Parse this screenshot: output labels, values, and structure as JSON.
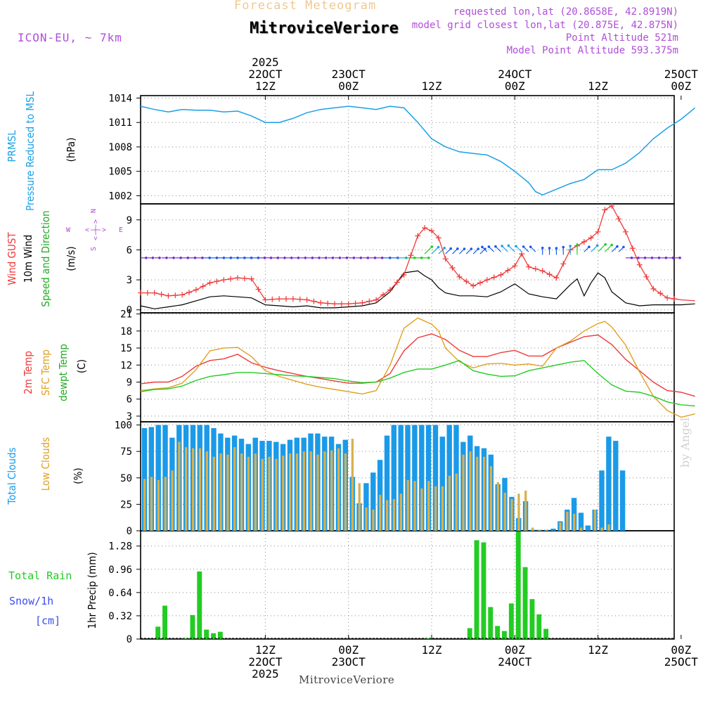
{
  "header": {
    "forecast_title": "Forecast Meteogram",
    "station": "MitroviceVeriore",
    "model": "ICON-EU, ~ 7km",
    "requested": "requested lon,lat (20.8658E, 42.8919N)",
    "closest": "model grid closest lon,lat (20.875E, 42.875N)",
    "altitude": "Point Altitude 521m",
    "model_altitude": "Model Point Altitude 593.375m",
    "watermark": "by Angel",
    "footer_name": "MitroviceVeriore"
  },
  "colors": {
    "pressure": "#1aa0e6",
    "gust": "#ee3a3a",
    "wind": "#000000",
    "temp": "#ee3a3a",
    "sfc": "#e0a020",
    "dewpt": "#22cc22",
    "total_clouds": "#1a9ae8",
    "low_clouds": "#d8b050",
    "precip": "#22cc22",
    "grid": "#888888",
    "label_purple": "#b04ed8",
    "snow_blue": "#3c4cf0"
  },
  "chart_data": {
    "type": "line",
    "time_axis": {
      "unit": "hours since 21OCT 18Z",
      "range": [
        0,
        77
      ],
      "top_ticks": [
        {
          "hour": 18,
          "lines": [
            "2025",
            "22OCT",
            "12Z"
          ]
        },
        {
          "hour": 30,
          "lines": [
            "23OCT",
            "00Z"
          ]
        },
        {
          "hour": 42,
          "lines": [
            "12Z"
          ]
        },
        {
          "hour": 54,
          "lines": [
            "24OCT",
            "00Z"
          ]
        },
        {
          "hour": 66,
          "lines": [
            "12Z"
          ]
        },
        {
          "hour": 78,
          "lines": [
            "25OCT",
            "00Z"
          ]
        }
      ],
      "bottom_ticks": [
        {
          "hour": 18,
          "lines": [
            "12Z",
            "22OCT",
            "2025"
          ]
        },
        {
          "hour": 30,
          "lines": [
            "00Z",
            "23OCT"
          ]
        },
        {
          "hour": 42,
          "lines": [
            "12Z"
          ]
        },
        {
          "hour": 54,
          "lines": [
            "00Z",
            "24OCT"
          ]
        },
        {
          "hour": 66,
          "lines": [
            "12Z"
          ]
        },
        {
          "hour": 78,
          "lines": [
            "00Z",
            "25OCT"
          ]
        }
      ]
    },
    "panels": [
      {
        "id": "pressure",
        "title_lines": [
          "PRMSL",
          "Pressure Reduced to MSL"
        ],
        "unit": "(hPa)",
        "ylim": [
          1001,
          1014.3
        ],
        "yticks": [
          1002,
          1005,
          1008,
          1011,
          1014
        ],
        "series": [
          {
            "name": "PRMSL",
            "x": [
              0,
              2,
              4,
              6,
              8,
              10,
              12,
              14,
              16,
              18,
              20,
              22,
              24,
              26,
              28,
              30,
              32,
              34,
              36,
              38,
              40,
              42,
              44,
              46,
              48,
              50,
              52,
              54,
              56,
              57,
              58,
              60,
              62,
              64,
              66,
              68,
              70,
              72,
              74,
              76,
              78,
              80
            ],
            "values": [
              1013,
              1012.6,
              1012.3,
              1012.6,
              1012.5,
              1012.5,
              1012.3,
              1012.4,
              1011.8,
              1011,
              1011,
              1011.5,
              1012.2,
              1012.6,
              1012.8,
              1013,
              1012.8,
              1012.6,
              1013,
              1012.8,
              1011,
              1009,
              1008,
              1007.4,
              1007.2,
              1007,
              1006.2,
              1005,
              1003.6,
              1002.5,
              1002.1,
              1002.8,
              1003.5,
              1004,
              1005.2,
              1005.2,
              1006,
              1007.3,
              1009,
              1010.3,
              1011.4,
              1012.8
            ]
          }
        ]
      },
      {
        "id": "wind",
        "title_lines_red": "Wind GUST",
        "title_lines_black": "10m Wind",
        "title_lines_green": "Speed and Direction",
        "unit": "(m/s)",
        "compass": {
          "n": "N",
          "s": "S",
          "w": "W",
          "e": "E",
          "arrows": "<-|->"
        },
        "ylim": [
          -0.3,
          10.6
        ],
        "yticks": [
          0,
          3,
          6,
          9
        ],
        "series": [
          {
            "name": "Wind GUST",
            "x": [
              0,
              2,
              4,
              6,
              8,
              10,
              12,
              14,
              16,
              18,
              20,
              22,
              24,
              26,
              28,
              30,
              32,
              34,
              36,
              38,
              40,
              41,
              42,
              43,
              44,
              46,
              48,
              50,
              52,
              54,
              55,
              56,
              58,
              60,
              62,
              64,
              65,
              66,
              67,
              68,
              70,
              72,
              74,
              76,
              78,
              80
            ],
            "values": [
              1.7,
              1.7,
              1.4,
              1.5,
              2,
              2.7,
              3,
              3.2,
              3.1,
              1,
              1.1,
              1.1,
              1,
              0.7,
              0.6,
              0.6,
              0.7,
              1,
              2,
              3.5,
              7.4,
              8.2,
              7.9,
              7.2,
              5.1,
              3.3,
              2.4,
              3,
              3.5,
              4.4,
              5.6,
              4.3,
              3.9,
              3.2,
              6,
              6.8,
              7.2,
              7.8,
              10,
              10.4,
              7.8,
              4.5,
              2.1,
              1.2,
              1,
              0.9
            ]
          },
          {
            "name": "10m Wind",
            "x": [
              0,
              2,
              4,
              6,
              8,
              10,
              12,
              14,
              16,
              18,
              20,
              22,
              24,
              26,
              28,
              30,
              32,
              34,
              36,
              38,
              40,
              41,
              42,
              43,
              44,
              46,
              48,
              50,
              52,
              53,
              54,
              56,
              58,
              60,
              62,
              63,
              64,
              65,
              66,
              67,
              68,
              70,
              72,
              74,
              76,
              78,
              80
            ],
            "values": [
              0.4,
              0.1,
              0.3,
              0.5,
              0.9,
              1.3,
              1.4,
              1.3,
              1.2,
              0.5,
              0.4,
              0.3,
              0.4,
              0.2,
              0.2,
              0.3,
              0.4,
              0.7,
              1.8,
              3.7,
              3.9,
              3.4,
              3,
              2.2,
              1.7,
              1.4,
              1.4,
              1.3,
              1.8,
              2.2,
              2.6,
              1.6,
              1.3,
              1.1,
              2.5,
              3.1,
              1.4,
              2.7,
              3.7,
              3.2,
              1.8,
              0.7,
              0.4,
              0.5,
              0.5,
              0.5,
              0.6
            ]
          }
        ],
        "arrow_samples": [
          {
            "x": 0,
            "speed": 5.2,
            "dir": "W"
          },
          {
            "x": 36,
            "speed": 5.2,
            "dir": "W"
          },
          {
            "x": 41,
            "speed": 5.6,
            "dir": "SW"
          },
          {
            "x": 50,
            "speed": 5.8,
            "dir": "SE"
          },
          {
            "x": 58,
            "speed": 5.5,
            "dir": "S"
          },
          {
            "x": 64,
            "speed": 5.8,
            "dir": "SW"
          },
          {
            "x": 70,
            "speed": 5.2,
            "dir": "W"
          },
          {
            "x": 80,
            "speed": 5.2,
            "dir": "W"
          }
        ]
      },
      {
        "id": "temperature",
        "title_red": "2m Temp",
        "title_orange": "SFC Temp",
        "title_green": "dewpt Temp",
        "unit": "(C)",
        "ylim": [
          2,
          21.2
        ],
        "yticks": [
          3,
          6,
          9,
          12,
          15,
          18,
          21
        ],
        "series": [
          {
            "name": "2m Temp",
            "x": [
              0,
              2,
              4,
              6,
              8,
              10,
              12,
              14,
              16,
              18,
              20,
              22,
              24,
              26,
              28,
              30,
              32,
              34,
              36,
              38,
              40,
              42,
              44,
              46,
              48,
              50,
              52,
              54,
              56,
              58,
              60,
              62,
              64,
              66,
              68,
              70,
              72,
              74,
              76,
              78,
              80
            ],
            "values": [
              8.7,
              9,
              9,
              10,
              11.8,
              12.8,
              13.1,
              13.9,
              12.4,
              11.6,
              11,
              10.5,
              10,
              9.6,
              9.2,
              8.8,
              8.8,
              9,
              10.5,
              14.5,
              16.8,
              17.5,
              16.5,
              14.6,
              13.5,
              13.5,
              14.2,
              14.6,
              13.6,
              13.6,
              15,
              16,
              17,
              17.3,
              15.6,
              13,
              11,
              9,
              7.5,
              7.2,
              6.5
            ]
          },
          {
            "name": "SFC Temp",
            "x": [
              0,
              2,
              4,
              6,
              8,
              10,
              12,
              14,
              16,
              18,
              20,
              22,
              24,
              26,
              28,
              30,
              32,
              34,
              36,
              38,
              40,
              42,
              43,
              44,
              46,
              48,
              50,
              52,
              54,
              56,
              58,
              60,
              62,
              64,
              66,
              67,
              68,
              70,
              72,
              74,
              76,
              78,
              80
            ],
            "values": [
              7.5,
              7.8,
              8,
              8.8,
              11.2,
              14.5,
              15,
              15.1,
              13.5,
              11,
              10,
              9.3,
              8.6,
              8.1,
              7.7,
              7.3,
              6.9,
              7.5,
              12,
              18.5,
              20.3,
              19.2,
              18,
              15,
              12.6,
              11.5,
              12.2,
              12.3,
              12,
              12.2,
              11.8,
              15,
              16.2,
              18,
              19.3,
              19.7,
              18.7,
              15.5,
              10.8,
              6.5,
              4,
              2.8,
              3.4
            ]
          },
          {
            "name": "dewpt Temp",
            "x": [
              0,
              2,
              4,
              6,
              8,
              10,
              12,
              14,
              16,
              18,
              20,
              22,
              24,
              26,
              28,
              30,
              32,
              34,
              36,
              38,
              40,
              42,
              44,
              46,
              48,
              50,
              52,
              54,
              56,
              58,
              60,
              62,
              64,
              66,
              68,
              70,
              72,
              74,
              76,
              78,
              80
            ],
            "values": [
              7.3,
              7.7,
              7.8,
              8.3,
              9.3,
              10,
              10.3,
              10.7,
              10.7,
              10.5,
              10.3,
              10.1,
              10,
              9.8,
              9.6,
              9.2,
              8.9,
              9,
              9.7,
              10.7,
              11.3,
              11.3,
              12,
              12.8,
              11,
              10.4,
              10,
              10.1,
              11,
              11.5,
              12,
              12.5,
              12.8,
              10.5,
              8.5,
              7.4,
              7.2,
              6.5,
              5.5,
              5,
              4.8
            ]
          }
        ]
      },
      {
        "id": "clouds",
        "title_blue": "Total Clouds",
        "title_orange": "Low Clouds",
        "unit": "(%)",
        "ylim": [
          0,
          103
        ],
        "yticks": [
          0,
          25,
          50,
          75,
          100
        ],
        "series": [
          {
            "name": "Total Clouds",
            "values": [
              97,
              98,
              100,
              100,
              88,
              100,
              100,
              100,
              100,
              100,
              97,
              92,
              88,
              90,
              87,
              82,
              88,
              85,
              85,
              84,
              82,
              86,
              88,
              88,
              92,
              92,
              89,
              89,
              82,
              86,
              51,
              26,
              45,
              55,
              67,
              90,
              100,
              100,
              100,
              100,
              100,
              100,
              100,
              89,
              100,
              100,
              84,
              90,
              80,
              78,
              72,
              44,
              50,
              32,
              12,
              28,
              1,
              1,
              1,
              2,
              9,
              20,
              31,
              17,
              5,
              20,
              57,
              89,
              85,
              57
            ]
          },
          {
            "name": "Low Clouds",
            "values": [
              49,
              51,
              48,
              51,
              57,
              84,
              79,
              78,
              78,
              75,
              70,
              73,
              72,
              79,
              73,
              70,
              73,
              68,
              70,
              68,
              71,
              73,
              73,
              75,
              75,
              72,
              75,
              76,
              78,
              73,
              87,
              45,
              22,
              20,
              34,
              29,
              30,
              35,
              48,
              47,
              40,
              47,
              42,
              42,
              52,
              54,
              72,
              75,
              70,
              70,
              61,
              46,
              36,
              30,
              35,
              38,
              3,
              1,
              1,
              0,
              8,
              18,
              16,
              3,
              0,
              20,
              3,
              6,
              0,
              0
            ]
          }
        ]
      },
      {
        "id": "precip",
        "title_green": "Total  Rain",
        "title_blue_1": "Snow/1h",
        "title_blue_2": "[cm]",
        "unit": "1hr Precip (mm)",
        "ylim": [
          0,
          1.49
        ],
        "yticks": [
          0,
          0.32,
          0.64,
          0.96,
          1.28
        ],
        "ytick_labels": [
          "0",
          "0.32",
          "0.64",
          "0.96",
          "1.28"
        ],
        "series": [
          {
            "name": "Total Rain",
            "values": [
              0,
              0,
              0.17,
              0.46,
              0,
              0,
              0.01,
              0.33,
              0.93,
              0.13,
              0.08,
              0.1,
              0,
              0,
              0,
              0,
              0,
              0,
              0,
              0,
              0,
              0,
              0,
              0,
              0,
              0,
              0,
              0,
              0,
              0,
              0,
              0,
              0,
              0,
              0,
              0,
              0,
              0,
              0,
              0,
              0,
              0.01,
              0,
              0,
              0,
              0,
              0,
              0.15,
              1.36,
              1.33,
              0.44,
              0.18,
              0.11,
              0.49,
              1.48,
              0.99,
              0.55,
              0.34,
              0.14,
              0,
              0,
              0,
              0,
              0,
              0,
              0,
              0,
              0,
              0,
              0
            ]
          }
        ]
      }
    ]
  }
}
